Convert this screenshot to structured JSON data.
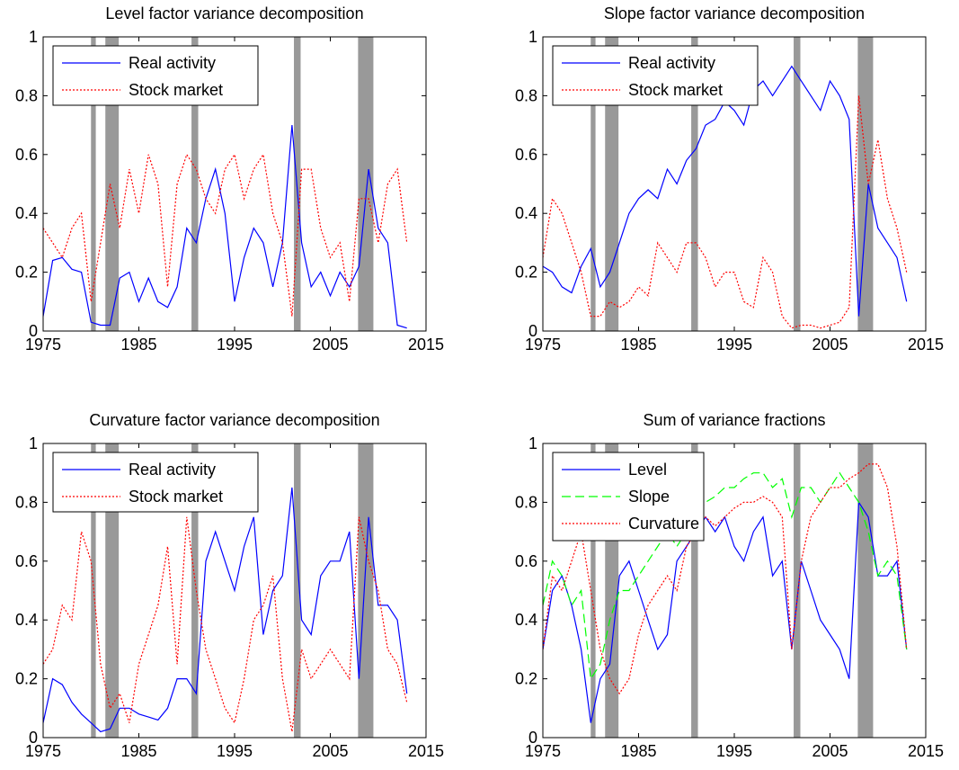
{
  "chart_data": [
    {
      "type": "line",
      "title": "Level factor variance decomposition",
      "xlim": [
        1975,
        2015
      ],
      "ylim": [
        0,
        1
      ],
      "xticks": [
        "1975",
        "1985",
        "1995",
        "2005",
        "2015"
      ],
      "yticks": [
        "0",
        "0.2",
        "0.4",
        "0.6",
        "0.8",
        "1"
      ],
      "legend_position": "top-left",
      "series": [
        {
          "name": "Real activity",
          "color": "#0000ff",
          "dash": "solid",
          "x": [
            1975,
            1976,
            1977,
            1978,
            1979,
            1980,
            1981,
            1982,
            1983,
            1984,
            1985,
            1986,
            1987,
            1988,
            1989,
            1990,
            1991,
            1992,
            1993,
            1994,
            1995,
            1996,
            1997,
            1998,
            1999,
            2000,
            2001,
            2002,
            2003,
            2004,
            2005,
            2006,
            2007,
            2008,
            2009,
            2010,
            2011,
            2012,
            2013
          ],
          "y": [
            0.05,
            0.24,
            0.25,
            0.21,
            0.2,
            0.03,
            0.02,
            0.02,
            0.18,
            0.2,
            0.1,
            0.18,
            0.1,
            0.08,
            0.15,
            0.35,
            0.3,
            0.45,
            0.55,
            0.4,
            0.1,
            0.25,
            0.35,
            0.3,
            0.15,
            0.3,
            0.7,
            0.3,
            0.15,
            0.2,
            0.12,
            0.2,
            0.15,
            0.22,
            0.55,
            0.35,
            0.3,
            0.02,
            0.01
          ]
        },
        {
          "name": "Stock market",
          "color": "#ff0000",
          "dash": "dotted",
          "x": [
            1975,
            1976,
            1977,
            1978,
            1979,
            1980,
            1981,
            1982,
            1983,
            1984,
            1985,
            1986,
            1987,
            1988,
            1989,
            1990,
            1991,
            1992,
            1993,
            1994,
            1995,
            1996,
            1997,
            1998,
            1999,
            2000,
            2001,
            2002,
            2003,
            2004,
            2005,
            2006,
            2007,
            2008,
            2009,
            2010,
            2011,
            2012,
            2013
          ],
          "y": [
            0.35,
            0.3,
            0.25,
            0.35,
            0.4,
            0.1,
            0.3,
            0.5,
            0.35,
            0.55,
            0.4,
            0.6,
            0.5,
            0.15,
            0.5,
            0.6,
            0.55,
            0.45,
            0.4,
            0.55,
            0.6,
            0.45,
            0.55,
            0.6,
            0.4,
            0.3,
            0.05,
            0.55,
            0.55,
            0.35,
            0.25,
            0.3,
            0.1,
            0.45,
            0.45,
            0.3,
            0.5,
            0.55,
            0.3
          ]
        }
      ]
    },
    {
      "type": "line",
      "title": "Slope factor variance decomposition",
      "xlim": [
        1975,
        2015
      ],
      "ylim": [
        0,
        1
      ],
      "xticks": [
        "1975",
        "1985",
        "1995",
        "2005",
        "2015"
      ],
      "yticks": [
        "0",
        "0.2",
        "0.4",
        "0.6",
        "0.8",
        "1"
      ],
      "legend_position": "top-left",
      "series": [
        {
          "name": "Real activity",
          "color": "#0000ff",
          "dash": "solid",
          "x": [
            1975,
            1976,
            1977,
            1978,
            1979,
            1980,
            1981,
            1982,
            1983,
            1984,
            1985,
            1986,
            1987,
            1988,
            1989,
            1990,
            1991,
            1992,
            1993,
            1994,
            1995,
            1996,
            1997,
            1998,
            1999,
            2000,
            2001,
            2002,
            2003,
            2004,
            2005,
            2006,
            2007,
            2008,
            2009,
            2010,
            2011,
            2012,
            2013
          ],
          "y": [
            0.22,
            0.2,
            0.15,
            0.13,
            0.22,
            0.28,
            0.15,
            0.2,
            0.3,
            0.4,
            0.45,
            0.48,
            0.45,
            0.55,
            0.5,
            0.58,
            0.62,
            0.7,
            0.72,
            0.78,
            0.75,
            0.7,
            0.82,
            0.85,
            0.8,
            0.85,
            0.9,
            0.85,
            0.8,
            0.75,
            0.85,
            0.8,
            0.72,
            0.05,
            0.5,
            0.35,
            0.3,
            0.25,
            0.1
          ]
        },
        {
          "name": "Stock market",
          "color": "#ff0000",
          "dash": "dotted",
          "x": [
            1975,
            1976,
            1977,
            1978,
            1979,
            1980,
            1981,
            1982,
            1983,
            1984,
            1985,
            1986,
            1987,
            1988,
            1989,
            1990,
            1991,
            1992,
            1993,
            1994,
            1995,
            1996,
            1997,
            1998,
            1999,
            2000,
            2001,
            2002,
            2003,
            2004,
            2005,
            2006,
            2007,
            2008,
            2009,
            2010,
            2011,
            2012,
            2013
          ],
          "y": [
            0.25,
            0.45,
            0.4,
            0.3,
            0.2,
            0.05,
            0.05,
            0.1,
            0.08,
            0.1,
            0.15,
            0.12,
            0.3,
            0.25,
            0.2,
            0.3,
            0.3,
            0.25,
            0.15,
            0.2,
            0.2,
            0.1,
            0.08,
            0.25,
            0.2,
            0.05,
            0.01,
            0.02,
            0.02,
            0.01,
            0.02,
            0.03,
            0.08,
            0.8,
            0.5,
            0.65,
            0.45,
            0.35,
            0.2
          ]
        }
      ]
    },
    {
      "type": "line",
      "title": "Curvature factor variance decomposition",
      "xlim": [
        1975,
        2015
      ],
      "ylim": [
        0,
        1
      ],
      "xticks": [
        "1975",
        "1985",
        "1995",
        "2005",
        "2015"
      ],
      "yticks": [
        "0",
        "0.2",
        "0.4",
        "0.6",
        "0.8",
        "1"
      ],
      "legend_position": "top-left",
      "series": [
        {
          "name": "Real activity",
          "color": "#0000ff",
          "dash": "solid",
          "x": [
            1975,
            1976,
            1977,
            1978,
            1979,
            1980,
            1981,
            1982,
            1983,
            1984,
            1985,
            1986,
            1987,
            1988,
            1989,
            1990,
            1991,
            1992,
            1993,
            1994,
            1995,
            1996,
            1997,
            1998,
            1999,
            2000,
            2001,
            2002,
            2003,
            2004,
            2005,
            2006,
            2007,
            2008,
            2009,
            2010,
            2011,
            2012,
            2013
          ],
          "y": [
            0.05,
            0.2,
            0.18,
            0.12,
            0.08,
            0.05,
            0.02,
            0.03,
            0.1,
            0.1,
            0.08,
            0.07,
            0.06,
            0.1,
            0.2,
            0.2,
            0.15,
            0.6,
            0.7,
            0.6,
            0.5,
            0.65,
            0.75,
            0.35,
            0.5,
            0.55,
            0.85,
            0.4,
            0.35,
            0.55,
            0.6,
            0.6,
            0.7,
            0.2,
            0.75,
            0.45,
            0.45,
            0.4,
            0.15
          ]
        },
        {
          "name": "Stock market",
          "color": "#ff0000",
          "dash": "dotted",
          "x": [
            1975,
            1976,
            1977,
            1978,
            1979,
            1980,
            1981,
            1982,
            1983,
            1984,
            1985,
            1986,
            1987,
            1988,
            1989,
            1990,
            1991,
            1992,
            1993,
            1994,
            1995,
            1996,
            1997,
            1998,
            1999,
            2000,
            2001,
            2002,
            2003,
            2004,
            2005,
            2006,
            2007,
            2008,
            2009,
            2010,
            2011,
            2012,
            2013
          ],
          "y": [
            0.25,
            0.3,
            0.45,
            0.4,
            0.7,
            0.6,
            0.25,
            0.1,
            0.15,
            0.05,
            0.25,
            0.35,
            0.45,
            0.65,
            0.25,
            0.75,
            0.5,
            0.3,
            0.2,
            0.1,
            0.05,
            0.2,
            0.4,
            0.45,
            0.55,
            0.2,
            0.02,
            0.3,
            0.2,
            0.25,
            0.3,
            0.25,
            0.2,
            0.75,
            0.6,
            0.5,
            0.3,
            0.25,
            0.12
          ]
        }
      ]
    },
    {
      "type": "line",
      "title": "Sum of variance fractions",
      "xlim": [
        1975,
        2015
      ],
      "ylim": [
        0,
        1
      ],
      "xticks": [
        "1975",
        "1985",
        "1995",
        "2005",
        "2015"
      ],
      "yticks": [
        "0",
        "0.2",
        "0.4",
        "0.6",
        "0.8",
        "1"
      ],
      "legend_position": "top-left",
      "series": [
        {
          "name": "Level",
          "color": "#0000ff",
          "dash": "solid",
          "x": [
            1975,
            1976,
            1977,
            1978,
            1979,
            1980,
            1981,
            1982,
            1983,
            1984,
            1985,
            1986,
            1987,
            1988,
            1989,
            1990,
            1991,
            1992,
            1993,
            1994,
            1995,
            1996,
            1997,
            1998,
            1999,
            2000,
            2001,
            2002,
            2003,
            2004,
            2005,
            2006,
            2007,
            2008,
            2009,
            2010,
            2011,
            2012,
            2013
          ],
          "y": [
            0.3,
            0.5,
            0.55,
            0.45,
            0.3,
            0.05,
            0.2,
            0.25,
            0.55,
            0.6,
            0.5,
            0.4,
            0.3,
            0.35,
            0.6,
            0.65,
            0.7,
            0.75,
            0.7,
            0.75,
            0.65,
            0.6,
            0.7,
            0.75,
            0.55,
            0.6,
            0.3,
            0.6,
            0.5,
            0.4,
            0.35,
            0.3,
            0.2,
            0.8,
            0.75,
            0.55,
            0.55,
            0.6,
            0.3
          ]
        },
        {
          "name": "Slope",
          "color": "#00ff00",
          "dash": "dashed",
          "x": [
            1975,
            1976,
            1977,
            1978,
            1979,
            1980,
            1981,
            1982,
            1983,
            1984,
            1985,
            1986,
            1987,
            1988,
            1989,
            1990,
            1991,
            1992,
            1993,
            1994,
            1995,
            1996,
            1997,
            1998,
            1999,
            2000,
            2001,
            2002,
            2003,
            2004,
            2005,
            2006,
            2007,
            2008,
            2009,
            2010,
            2011,
            2012,
            2013
          ],
          "y": [
            0.45,
            0.6,
            0.55,
            0.45,
            0.5,
            0.2,
            0.25,
            0.4,
            0.5,
            0.5,
            0.55,
            0.6,
            0.65,
            0.7,
            0.65,
            0.7,
            0.75,
            0.8,
            0.82,
            0.85,
            0.85,
            0.88,
            0.9,
            0.9,
            0.85,
            0.88,
            0.75,
            0.85,
            0.85,
            0.8,
            0.85,
            0.9,
            0.85,
            0.8,
            0.7,
            0.55,
            0.6,
            0.55,
            0.3
          ]
        },
        {
          "name": "Curvature",
          "color": "#ff0000",
          "dash": "dotted",
          "x": [
            1975,
            1976,
            1977,
            1978,
            1979,
            1980,
            1981,
            1982,
            1983,
            1984,
            1985,
            1986,
            1987,
            1988,
            1989,
            1990,
            1991,
            1992,
            1993,
            1994,
            1995,
            1996,
            1997,
            1998,
            1999,
            2000,
            2001,
            2002,
            2003,
            2004,
            2005,
            2006,
            2007,
            2008,
            2009,
            2010,
            2011,
            2012,
            2013
          ],
          "y": [
            0.3,
            0.55,
            0.5,
            0.6,
            0.7,
            0.5,
            0.3,
            0.2,
            0.15,
            0.2,
            0.35,
            0.45,
            0.5,
            0.55,
            0.5,
            0.65,
            0.7,
            0.75,
            0.72,
            0.75,
            0.78,
            0.8,
            0.8,
            0.82,
            0.8,
            0.75,
            0.3,
            0.6,
            0.75,
            0.8,
            0.85,
            0.85,
            0.88,
            0.9,
            0.93,
            0.93,
            0.85,
            0.65,
            0.3
          ]
        }
      ]
    }
  ],
  "recession_bands": [
    [
      1980.0,
      1980.5
    ],
    [
      1981.5,
      1982.9
    ],
    [
      1990.5,
      1991.2
    ],
    [
      2001.2,
      2001.9
    ],
    [
      2007.9,
      2009.5
    ]
  ],
  "colors": {
    "recession": "#999999",
    "axis": "#000000",
    "background": "#ffffff"
  }
}
